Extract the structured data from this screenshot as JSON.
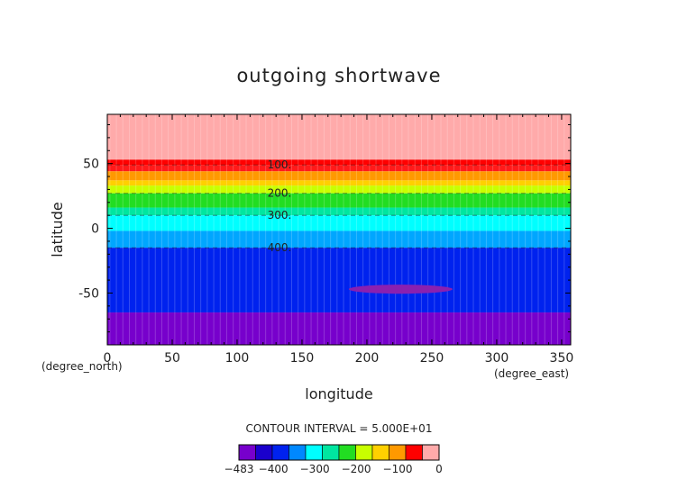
{
  "chart_data": {
    "type": "heatmap",
    "title": "outgoing shortwave",
    "xlabel": "longitude",
    "ylabel": "latitude",
    "x_unit": "(degree_east)",
    "y_unit": "(degree_north)",
    "xlim": [
      0,
      357
    ],
    "ylim": [
      -90,
      88
    ],
    "xticks": [
      0,
      50,
      100,
      150,
      200,
      250,
      300,
      350
    ],
    "yticks": [
      -50,
      0,
      50
    ],
    "grid": false,
    "contour_interval_text": "CONTOUR INTERVAL = 5.000E+01",
    "bands": [
      {
        "lat_min": 53,
        "lat_max": 88,
        "color": "#ffaaaa"
      },
      {
        "lat_min": 49,
        "lat_max": 53,
        "color": "#ff0000"
      },
      {
        "lat_min": 44,
        "lat_max": 49,
        "color": "#ff1a1a"
      },
      {
        "lat_min": 37,
        "lat_max": 44,
        "color": "#ff9900"
      },
      {
        "lat_min": 33,
        "lat_max": 37,
        "color": "#ffd000"
      },
      {
        "lat_min": 27,
        "lat_max": 33,
        "color": "#c8ff00"
      },
      {
        "lat_min": 16,
        "lat_max": 27,
        "color": "#22dd22"
      },
      {
        "lat_min": 10,
        "lat_max": 16,
        "color": "#00e6a0"
      },
      {
        "lat_min": -2,
        "lat_max": 10,
        "color": "#00ffff"
      },
      {
        "lat_min": -15,
        "lat_max": -2,
        "color": "#00a6ff"
      },
      {
        "lat_min": -65,
        "lat_max": -15,
        "color": "#0022ee"
      },
      {
        "lat_min": -90,
        "lat_max": -65,
        "color": "#7700cc"
      }
    ],
    "patch": {
      "lon_center": 226,
      "lat_center": -47,
      "lon_halfwidth": 40,
      "lat_halfheight": 3.5,
      "color": "#8a20b0"
    },
    "contour_lines": [
      {
        "lat": 49,
        "label": "100."
      },
      {
        "lat": 27,
        "label": "200."
      },
      {
        "lat": 10,
        "label": "300."
      },
      {
        "lat": -15,
        "label": "400."
      }
    ],
    "colorbar": {
      "colors": [
        "#7700cc",
        "#1a00cc",
        "#0022ee",
        "#0088ff",
        "#00ffff",
        "#00e6a0",
        "#22dd22",
        "#c8ff00",
        "#ffd000",
        "#ff9900",
        "#ff0000",
        "#ffaaaa"
      ],
      "tick_labels": [
        "−483",
        "−400",
        "−300",
        "−200",
        "−100",
        "0"
      ]
    }
  }
}
